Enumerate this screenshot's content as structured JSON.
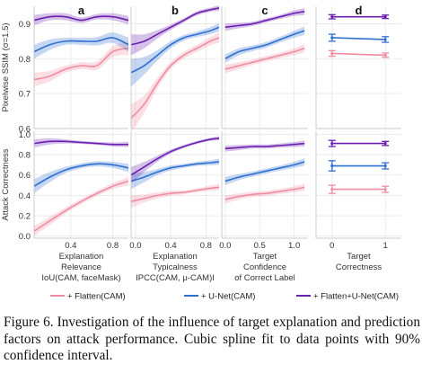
{
  "figure": {
    "panel_labels": [
      "a",
      "b",
      "c",
      "d"
    ],
    "row_ylabels": [
      "Pixelwise SSIM (σ=1.5)",
      "Attack Correctness"
    ],
    "col_xlabels": [
      [
        "Explanation",
        "Relevance",
        "IoU(CAM, faceMask)"
      ],
      [
        "Explanation",
        "Typicalness",
        "IPCC(CAM, μ-CAM)I"
      ],
      [
        "Target",
        "Confidence",
        "of Correct Label"
      ],
      [
        "Target",
        "Correctness"
      ]
    ],
    "legend": [
      "+ Flatten(CAM)",
      "+ U-Net(CAM)",
      "+ Flatten+U-Net(CAM)"
    ],
    "colors": {
      "flatten": "#f08ca0",
      "unet": "#2e6fd0",
      "flatten_unet": "#6a1fb0"
    }
  },
  "caption": {
    "label": "Figure 6.",
    "text": "Investigation of the influence of target explanation and prediction factors on attack performance. Cubic spline fit to data points with 90% confidence interval."
  },
  "chart_data": [
    {
      "type": "line",
      "panel": "a",
      "metric": "Pixelwise SSIM (σ=1.5)",
      "xlabel": "Explanation Relevance IoU(CAM, faceMask)",
      "xlim": [
        0.05,
        0.95
      ],
      "ylim": [
        0.6,
        0.95
      ],
      "xticks": [
        0.4,
        0.8
      ],
      "yticks": [
        0.6,
        0.7,
        0.8,
        0.9
      ],
      "x": [
        0.05,
        0.2,
        0.35,
        0.5,
        0.65,
        0.8,
        0.95
      ],
      "series": [
        {
          "name": "+ Flatten(CAM)",
          "values": [
            0.74,
            0.75,
            0.77,
            0.78,
            0.78,
            0.82,
            0.83
          ],
          "band": [
            0.02,
            0.015,
            0.01,
            0.01,
            0.012,
            0.015,
            0.02
          ]
        },
        {
          "name": "+ U-Net(CAM)",
          "values": [
            0.82,
            0.84,
            0.85,
            0.85,
            0.85,
            0.86,
            0.84
          ],
          "band": [
            0.02,
            0.015,
            0.01,
            0.01,
            0.012,
            0.015,
            0.02
          ]
        },
        {
          "name": "+ Flatten+U-Net(CAM)",
          "values": [
            0.91,
            0.92,
            0.92,
            0.91,
            0.92,
            0.92,
            0.91
          ],
          "band": [
            0.015,
            0.01,
            0.01,
            0.008,
            0.008,
            0.01,
            0.012
          ]
        }
      ]
    },
    {
      "type": "line",
      "panel": "b",
      "metric": "Pixelwise SSIM (σ=1.5)",
      "xlabel": "Explanation Typicalness IPCC(CAM, μ-CAM)I",
      "xlim": [
        -0.05,
        0.95
      ],
      "ylim": [
        0.6,
        0.95
      ],
      "xticks": [
        0.0,
        0.4,
        0.8
      ],
      "yticks": [
        0.6,
        0.7,
        0.8,
        0.9
      ],
      "x": [
        -0.05,
        0.1,
        0.25,
        0.4,
        0.55,
        0.7,
        0.85,
        0.95
      ],
      "series": [
        {
          "name": "+ Flatten(CAM)",
          "values": [
            0.63,
            0.67,
            0.73,
            0.78,
            0.81,
            0.83,
            0.85,
            0.86
          ],
          "band": [
            0.04,
            0.025,
            0.015,
            0.01,
            0.01,
            0.01,
            0.012,
            0.015
          ]
        },
        {
          "name": "+ U-Net(CAM)",
          "values": [
            0.76,
            0.78,
            0.81,
            0.84,
            0.86,
            0.87,
            0.88,
            0.89
          ],
          "band": [
            0.04,
            0.025,
            0.015,
            0.01,
            0.008,
            0.008,
            0.01,
            0.012
          ]
        },
        {
          "name": "+ Flatten+U-Net(CAM)",
          "values": [
            0.84,
            0.85,
            0.87,
            0.89,
            0.91,
            0.93,
            0.94,
            0.945
          ],
          "band": [
            0.03,
            0.02,
            0.012,
            0.008,
            0.006,
            0.006,
            0.006,
            0.008
          ]
        }
      ]
    },
    {
      "type": "line",
      "panel": "c",
      "metric": "Pixelwise SSIM (σ=1.5)",
      "xlabel": "Target Confidence of Correct Label",
      "xlim": [
        -0.05,
        1.2
      ],
      "ylim": [
        0.6,
        0.95
      ],
      "xticks": [
        0.0,
        0.5,
        1.0
      ],
      "yticks": [
        0.6,
        0.7,
        0.8,
        0.9
      ],
      "x": [
        0.0,
        0.2,
        0.4,
        0.6,
        0.8,
        1.0,
        1.15
      ],
      "series": [
        {
          "name": "+ Flatten(CAM)",
          "values": [
            0.77,
            0.78,
            0.79,
            0.8,
            0.81,
            0.82,
            0.83
          ],
          "band": [
            0.012,
            0.01,
            0.008,
            0.008,
            0.008,
            0.01,
            0.012
          ]
        },
        {
          "name": "+ U-Net(CAM)",
          "values": [
            0.8,
            0.82,
            0.83,
            0.84,
            0.855,
            0.87,
            0.88
          ],
          "band": [
            0.012,
            0.01,
            0.008,
            0.008,
            0.008,
            0.01,
            0.012
          ]
        },
        {
          "name": "+ Flatten+U-Net(CAM)",
          "values": [
            0.89,
            0.895,
            0.9,
            0.91,
            0.92,
            0.93,
            0.935
          ],
          "band": [
            0.01,
            0.008,
            0.006,
            0.006,
            0.006,
            0.008,
            0.01
          ]
        }
      ]
    },
    {
      "type": "scatter",
      "panel": "d",
      "metric": "Pixelwise SSIM (σ=1.5)",
      "xlabel": "Target Correctness",
      "xlim": [
        -0.3,
        1.3
      ],
      "ylim": [
        0.6,
        0.95
      ],
      "xticks": [
        0,
        1
      ],
      "yticks": [
        0.6,
        0.7,
        0.8,
        0.9
      ],
      "x": [
        0,
        1
      ],
      "series": [
        {
          "name": "+ Flatten(CAM)",
          "values": [
            0.815,
            0.81
          ],
          "err": [
            0.008,
            0.006
          ]
        },
        {
          "name": "+ U-Net(CAM)",
          "values": [
            0.86,
            0.855
          ],
          "err": [
            0.01,
            0.008
          ]
        },
        {
          "name": "+ Flatten+U-Net(CAM)",
          "values": [
            0.92,
            0.92
          ],
          "err": [
            0.006,
            0.005
          ]
        }
      ]
    },
    {
      "type": "line",
      "panel": "a",
      "metric": "Attack Correctness",
      "xlabel": "Explanation Relevance IoU(CAM, faceMask)",
      "xlim": [
        0.05,
        0.95
      ],
      "ylim": [
        -0.02,
        1.03
      ],
      "xticks": [
        0.4,
        0.8
      ],
      "yticks": [
        0.0,
        0.2,
        0.4,
        0.6,
        0.8,
        1.0
      ],
      "x": [
        0.05,
        0.2,
        0.35,
        0.5,
        0.65,
        0.8,
        0.95
      ],
      "series": [
        {
          "name": "+ Flatten(CAM)",
          "values": [
            0.05,
            0.15,
            0.25,
            0.34,
            0.42,
            0.49,
            0.54
          ],
          "band": [
            0.05,
            0.04,
            0.03,
            0.025,
            0.025,
            0.03,
            0.04
          ]
        },
        {
          "name": "+ U-Net(CAM)",
          "values": [
            0.49,
            0.58,
            0.65,
            0.69,
            0.71,
            0.7,
            0.67
          ],
          "band": [
            0.07,
            0.05,
            0.03,
            0.025,
            0.025,
            0.03,
            0.04
          ]
        },
        {
          "name": "+ Flatten+U-Net(CAM)",
          "values": [
            0.91,
            0.93,
            0.93,
            0.92,
            0.91,
            0.9,
            0.9
          ],
          "band": [
            0.04,
            0.03,
            0.02,
            0.015,
            0.015,
            0.02,
            0.025
          ]
        }
      ]
    },
    {
      "type": "line",
      "panel": "b",
      "metric": "Attack Correctness",
      "xlabel": "Explanation Typicalness IPCC(CAM, μ-CAM)I",
      "xlim": [
        -0.05,
        0.95
      ],
      "ylim": [
        -0.02,
        1.03
      ],
      "xticks": [
        0.0,
        0.4,
        0.8
      ],
      "yticks": [
        0.0,
        0.2,
        0.4,
        0.6,
        0.8,
        1.0
      ],
      "x": [
        -0.05,
        0.1,
        0.25,
        0.4,
        0.55,
        0.7,
        0.85,
        0.95
      ],
      "series": [
        {
          "name": "+ Flatten(CAM)",
          "values": [
            0.34,
            0.37,
            0.4,
            0.42,
            0.43,
            0.45,
            0.47,
            0.48
          ],
          "band": [
            0.06,
            0.04,
            0.03,
            0.025,
            0.02,
            0.02,
            0.025,
            0.03
          ]
        },
        {
          "name": "+ U-Net(CAM)",
          "values": [
            0.54,
            0.58,
            0.63,
            0.67,
            0.69,
            0.71,
            0.72,
            0.73
          ],
          "band": [
            0.08,
            0.05,
            0.03,
            0.025,
            0.02,
            0.02,
            0.025,
            0.03
          ]
        },
        {
          "name": "+ Flatten+U-Net(CAM)",
          "values": [
            0.6,
            0.68,
            0.76,
            0.83,
            0.88,
            0.92,
            0.95,
            0.96
          ],
          "band": [
            0.08,
            0.05,
            0.03,
            0.02,
            0.015,
            0.015,
            0.015,
            0.02
          ]
        }
      ]
    },
    {
      "type": "line",
      "panel": "c",
      "metric": "Attack Correctness",
      "xlabel": "Target Confidence of Correct Label",
      "xlim": [
        -0.05,
        1.2
      ],
      "ylim": [
        -0.02,
        1.03
      ],
      "xticks": [
        0.0,
        0.5,
        1.0
      ],
      "yticks": [
        0.0,
        0.2,
        0.4,
        0.6,
        0.8,
        1.0
      ],
      "x": [
        0.0,
        0.2,
        0.4,
        0.6,
        0.8,
        1.0,
        1.15
      ],
      "series": [
        {
          "name": "+ Flatten(CAM)",
          "values": [
            0.36,
            0.39,
            0.41,
            0.42,
            0.44,
            0.46,
            0.48
          ],
          "band": [
            0.04,
            0.03,
            0.025,
            0.025,
            0.025,
            0.03,
            0.035
          ]
        },
        {
          "name": "+ U-Net(CAM)",
          "values": [
            0.54,
            0.58,
            0.61,
            0.64,
            0.67,
            0.7,
            0.73
          ],
          "band": [
            0.04,
            0.03,
            0.025,
            0.025,
            0.025,
            0.03,
            0.035
          ]
        },
        {
          "name": "+ Flatten+U-Net(CAM)",
          "values": [
            0.86,
            0.87,
            0.88,
            0.88,
            0.89,
            0.9,
            0.91
          ],
          "band": [
            0.03,
            0.025,
            0.02,
            0.02,
            0.02,
            0.025,
            0.03
          ]
        }
      ]
    },
    {
      "type": "scatter",
      "panel": "d",
      "metric": "Attack Correctness",
      "xlabel": "Target Correctness",
      "xlim": [
        -0.3,
        1.3
      ],
      "ylim": [
        -0.02,
        1.03
      ],
      "xticks": [
        0,
        1
      ],
      "yticks": [
        0.0,
        0.2,
        0.4,
        0.6,
        0.8,
        1.0
      ],
      "x": [
        0,
        1
      ],
      "series": [
        {
          "name": "+ Flatten(CAM)",
          "values": [
            0.46,
            0.46
          ],
          "err": [
            0.04,
            0.03
          ]
        },
        {
          "name": "+ U-Net(CAM)",
          "values": [
            0.69,
            0.69
          ],
          "err": [
            0.05,
            0.03
          ]
        },
        {
          "name": "+ Flatten+U-Net(CAM)",
          "values": [
            0.91,
            0.91
          ],
          "err": [
            0.03,
            0.02
          ]
        }
      ]
    }
  ]
}
